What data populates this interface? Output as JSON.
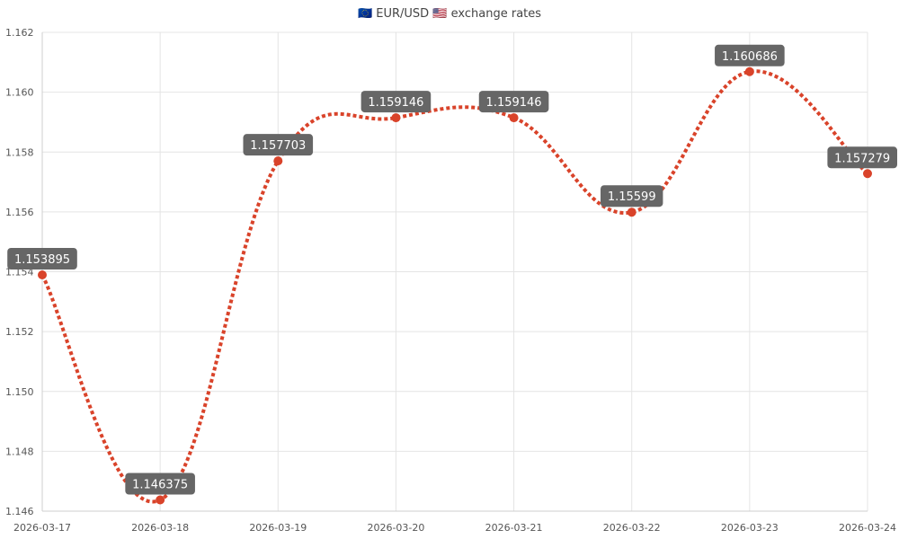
{
  "chart_data": {
    "type": "line",
    "title": "🇪🇺 EUR/USD 🇺🇸 exchange rates",
    "x": [
      "2026-03-17",
      "2026-03-18",
      "2026-03-19",
      "2026-03-20",
      "2026-03-21",
      "2026-03-22",
      "2026-03-23",
      "2026-03-24"
    ],
    "series": [
      {
        "values": [
          1.153895,
          1.146375,
          1.157703,
          1.159146,
          1.159146,
          1.15599,
          1.160686,
          1.157279
        ],
        "color": "#d9432a",
        "line_style": "dotted",
        "smooth": true
      }
    ],
    "data_labels": [
      "1.153895",
      "1.146375",
      "1.157703",
      "1.159146",
      "1.159146",
      "1.15599",
      "1.160686",
      "1.157279"
    ],
    "ylim": [
      1.146,
      1.162
    ],
    "yticks": [
      "1.146",
      "1.148",
      "1.150",
      "1.152",
      "1.154",
      "1.156",
      "1.158",
      "1.160",
      "1.162"
    ],
    "grid": true,
    "legend": "none"
  }
}
